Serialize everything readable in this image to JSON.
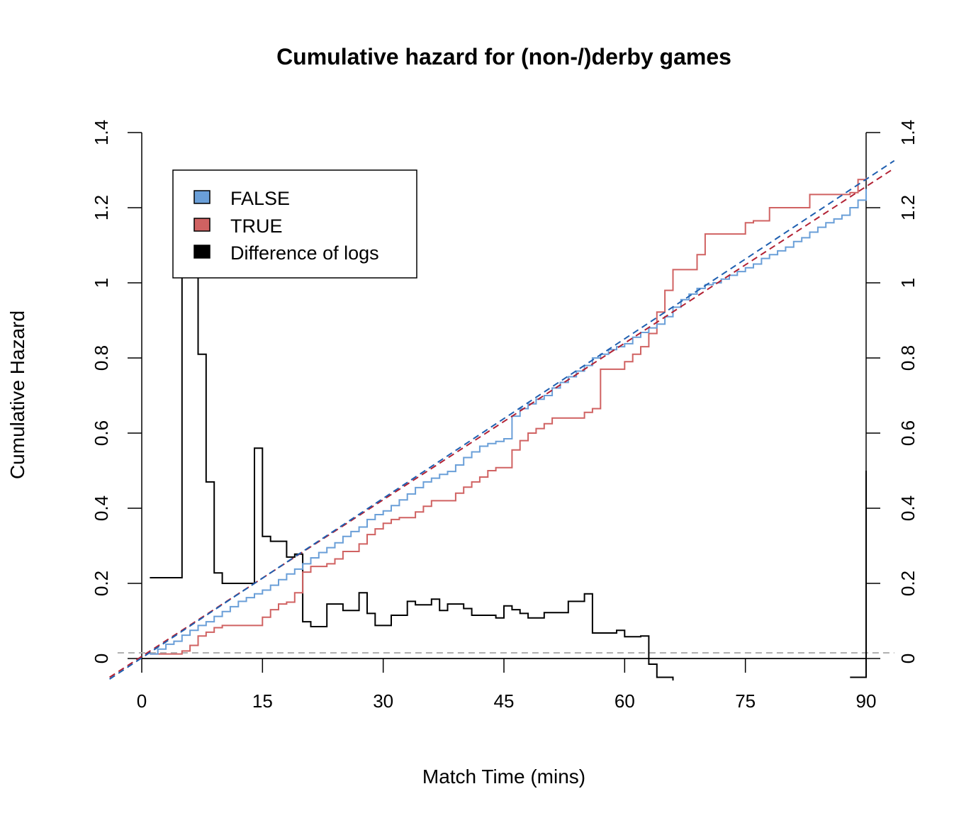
{
  "chart_data": {
    "type": "line",
    "title": "Cumulative hazard for (non-/)derby games",
    "xlabel": "Match Time (mins)",
    "ylabel": "Cumulative Hazard",
    "xlim": [
      0,
      90
    ],
    "ylim": [
      0,
      1.4
    ],
    "x_ticks": [
      "0",
      "15",
      "30",
      "45",
      "60",
      "75",
      "90"
    ],
    "y_ticks": [
      "0",
      "0.2",
      "0.4",
      "0.6",
      "0.8",
      "1",
      "1.2",
      "1.4"
    ],
    "y_ticks_right": [
      "0",
      "0.2",
      "0.4",
      "0.6",
      "0.8",
      "1",
      "1.2",
      "1.4"
    ],
    "grid": false,
    "legend_position": "top-left",
    "colors": {
      "FALSE": "#6a9fd8",
      "TRUE": "#d06262",
      "diff": "#000000",
      "fit_false": "#1f5fb0",
      "fit_true": "#b22234",
      "ref": "#b0b0b0"
    },
    "legend": [
      {
        "label": "FALSE",
        "color": "#6a9fd8"
      },
      {
        "label": "TRUE",
        "color": "#d06262"
      },
      {
        "label": "Difference of logs",
        "color": "#000000"
      }
    ],
    "series": [
      {
        "name": "FALSE",
        "style": "step",
        "x": [
          1,
          2,
          3,
          4,
          5,
          6,
          7,
          8,
          9,
          10,
          11,
          12,
          13,
          14,
          15,
          16,
          17,
          18,
          19,
          20,
          21,
          22,
          23,
          24,
          25,
          26,
          27,
          28,
          29,
          30,
          31,
          32,
          33,
          34,
          35,
          36,
          37,
          38,
          39,
          40,
          41,
          42,
          43,
          44,
          45,
          46,
          47,
          48,
          49,
          50,
          51,
          52,
          53,
          54,
          55,
          56,
          57,
          58,
          59,
          60,
          61,
          62,
          63,
          64,
          65,
          66,
          67,
          68,
          69,
          70,
          71,
          72,
          73,
          74,
          75,
          76,
          77,
          78,
          79,
          80,
          81,
          82,
          83,
          84,
          85,
          86,
          87,
          88,
          89,
          90
        ],
        "y": [
          0.012,
          0.025,
          0.038,
          0.046,
          0.062,
          0.075,
          0.088,
          0.098,
          0.112,
          0.125,
          0.138,
          0.152,
          0.162,
          0.172,
          0.182,
          0.195,
          0.21,
          0.225,
          0.238,
          0.252,
          0.268,
          0.282,
          0.295,
          0.308,
          0.325,
          0.338,
          0.35,
          0.37,
          0.383,
          0.393,
          0.407,
          0.422,
          0.438,
          0.455,
          0.47,
          0.48,
          0.49,
          0.498,
          0.515,
          0.535,
          0.55,
          0.565,
          0.572,
          0.578,
          0.585,
          0.645,
          0.665,
          0.678,
          0.69,
          0.7,
          0.72,
          0.735,
          0.75,
          0.765,
          0.78,
          0.8,
          0.81,
          0.822,
          0.83,
          0.838,
          0.855,
          0.868,
          0.88,
          0.89,
          0.91,
          0.935,
          0.955,
          0.97,
          0.985,
          0.995,
          1.0,
          1.01,
          1.02,
          1.03,
          1.04,
          1.05,
          1.065,
          1.075,
          1.085,
          1.095,
          1.11,
          1.12,
          1.135,
          1.148,
          1.16,
          1.17,
          1.18,
          1.2,
          1.22,
          1.25
        ]
      },
      {
        "name": "TRUE",
        "style": "step",
        "x": [
          1,
          5,
          6,
          7,
          8,
          9,
          10,
          14,
          15,
          16,
          17,
          18,
          19,
          20,
          21,
          23,
          24,
          25,
          27,
          28,
          29,
          30,
          31,
          32,
          34,
          35,
          36,
          38,
          39,
          40,
          41,
          42,
          43,
          44,
          46,
          47,
          48,
          49,
          50,
          51,
          52,
          55,
          56,
          57,
          59,
          60,
          61,
          62,
          63,
          64,
          65,
          66,
          69,
          70,
          72,
          73,
          75,
          76,
          77,
          78,
          79,
          80,
          82,
          83,
          88,
          89,
          90
        ],
        "y": [
          0.012,
          0.02,
          0.035,
          0.06,
          0.07,
          0.082,
          0.088,
          0.088,
          0.11,
          0.13,
          0.145,
          0.15,
          0.175,
          0.23,
          0.245,
          0.252,
          0.265,
          0.285,
          0.305,
          0.33,
          0.345,
          0.36,
          0.37,
          0.375,
          0.39,
          0.405,
          0.42,
          0.42,
          0.44,
          0.456,
          0.47,
          0.483,
          0.5,
          0.508,
          0.555,
          0.58,
          0.6,
          0.612,
          0.625,
          0.64,
          0.64,
          0.655,
          0.665,
          0.77,
          0.77,
          0.79,
          0.81,
          0.83,
          0.865,
          0.922,
          0.98,
          1.035,
          1.075,
          1.13,
          1.13,
          1.13,
          1.16,
          1.165,
          1.165,
          1.2,
          1.2,
          1.2,
          1.2,
          1.235,
          1.24,
          1.275,
          1.28
        ]
      },
      {
        "name": "Difference of logs",
        "style": "step",
        "x": [
          1,
          5,
          6,
          7,
          8,
          9,
          10,
          14,
          15,
          16,
          17,
          18,
          19,
          20,
          21,
          23,
          24,
          25,
          26,
          27,
          28,
          29,
          30,
          31,
          33,
          34,
          35,
          36,
          37,
          38,
          39,
          40,
          41,
          42,
          43,
          44,
          45,
          46,
          47,
          48,
          49,
          50,
          51,
          52,
          53,
          54,
          55,
          56,
          57,
          59,
          60,
          61,
          62,
          63,
          64,
          65,
          66
        ],
        "y": [
          0.215,
          1.07,
          1.07,
          0.81,
          0.47,
          0.228,
          0.2,
          0.56,
          0.325,
          0.312,
          0.312,
          0.27,
          0.278,
          0.098,
          0.085,
          0.145,
          0.145,
          0.128,
          0.128,
          0.175,
          0.12,
          0.088,
          0.088,
          0.115,
          0.152,
          0.143,
          0.143,
          0.158,
          0.128,
          0.145,
          0.145,
          0.133,
          0.115,
          0.115,
          0.115,
          0.108,
          0.14,
          0.13,
          0.12,
          0.108,
          0.108,
          0.122,
          0.122,
          0.122,
          0.152,
          0.152,
          0.172,
          0.068,
          0.068,
          0.075,
          0.058,
          0.058,
          0.06,
          -0.015,
          -0.05,
          -0.05,
          -0.05
        ]
      },
      {
        "name": "Difference of logs (tail)",
        "style": "step",
        "x": [
          88,
          89,
          90
        ],
        "y": [
          -0.05,
          -0.05,
          0.5
        ]
      },
      {
        "name": "FALSE fit",
        "style": "dashed",
        "x": [
          -4,
          93.5
        ],
        "y": [
          -0.055,
          1.325
        ]
      },
      {
        "name": "TRUE fit",
        "style": "dashed",
        "x": [
          -4,
          93.5
        ],
        "y": [
          -0.05,
          1.305
        ]
      },
      {
        "name": "Reference",
        "style": "dashed",
        "x": [
          -3,
          93.5
        ],
        "y": [
          0.015,
          0.015
        ]
      }
    ]
  }
}
